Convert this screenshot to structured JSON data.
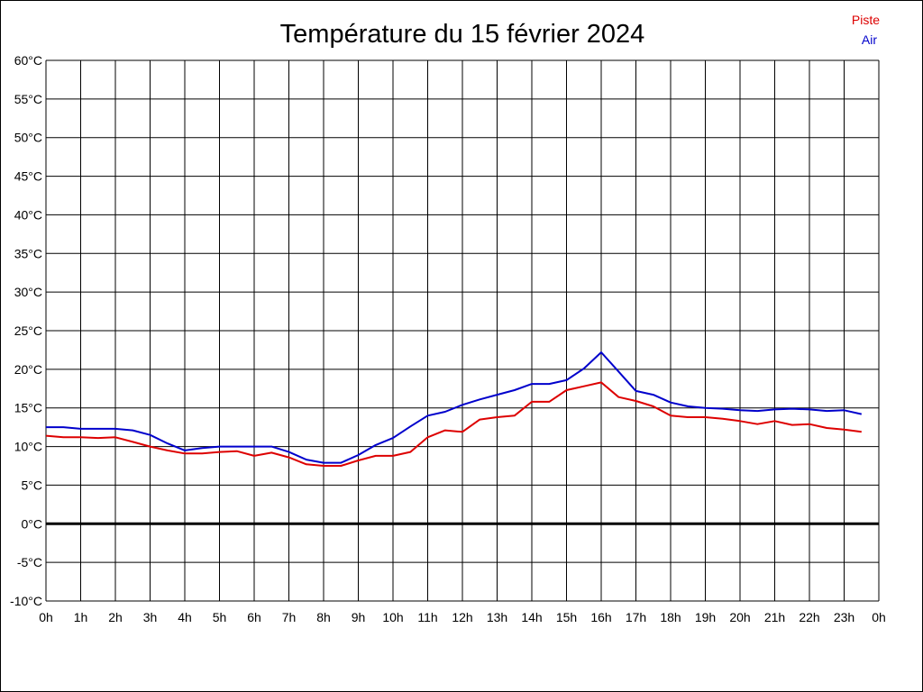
{
  "chart_data": {
    "type": "line",
    "title": "Température du 15 février 2024",
    "y_unit": "°C",
    "ylim": [
      -10,
      60
    ],
    "y_ticks": [
      60,
      55,
      50,
      45,
      40,
      35,
      30,
      25,
      20,
      15,
      10,
      5,
      0,
      -5,
      -10
    ],
    "y_tick_labels": [
      "60°C",
      "55°C",
      "50°C",
      "45°C",
      "40°C",
      "35°C",
      "30°C",
      "25°C",
      "20°C",
      "15°C",
      "10°C",
      "5°C",
      "0°C",
      "-5°C",
      "-10°C"
    ],
    "xlim": [
      0,
      24
    ],
    "x_ticks": [
      0,
      1,
      2,
      3,
      4,
      5,
      6,
      7,
      8,
      9,
      10,
      11,
      12,
      13,
      14,
      15,
      16,
      17,
      18,
      19,
      20,
      21,
      22,
      23,
      24
    ],
    "x_tick_labels": [
      "0h",
      "1h",
      "2h",
      "3h",
      "4h",
      "5h",
      "6h",
      "7h",
      "8h",
      "9h",
      "10h",
      "11h",
      "12h",
      "13h",
      "14h",
      "15h",
      "16h",
      "17h",
      "18h",
      "19h",
      "20h",
      "21h",
      "22h",
      "23h",
      "0h"
    ],
    "grid": true,
    "zero_line": true,
    "legend_position": "top-right",
    "x": [
      0,
      0.5,
      1,
      1.5,
      2,
      2.5,
      3,
      3.5,
      4,
      4.5,
      5,
      5.5,
      6,
      6.5,
      7,
      7.5,
      8,
      8.5,
      9,
      9.5,
      10,
      10.5,
      11,
      11.5,
      12,
      12.5,
      13,
      13.5,
      14,
      14.5,
      15,
      15.5,
      16,
      16.5,
      17,
      17.5,
      18,
      18.5,
      19,
      19.5,
      20,
      20.5,
      21,
      21.5,
      22,
      22.5,
      23,
      23.5
    ],
    "series": [
      {
        "name": "Piste",
        "color": "#dd0000",
        "values": [
          11.4,
          11.2,
          11.2,
          11.1,
          11.2,
          10.6,
          10.0,
          9.5,
          9.1,
          9.1,
          9.3,
          9.4,
          8.8,
          9.2,
          8.6,
          7.7,
          7.5,
          7.5,
          8.2,
          8.8,
          8.8,
          9.3,
          11.2,
          12.1,
          11.9,
          13.5,
          13.8,
          14.0,
          15.8,
          15.8,
          17.3,
          17.8,
          18.3,
          16.4,
          15.9,
          15.2,
          14.0,
          13.8,
          13.8,
          13.6,
          13.3,
          12.9,
          13.3,
          12.8,
          12.9,
          12.4,
          12.2,
          11.9
        ]
      },
      {
        "name": "Air",
        "color": "#0000cc",
        "values": [
          12.5,
          12.5,
          12.3,
          12.3,
          12.3,
          12.1,
          11.5,
          10.4,
          9.5,
          9.8,
          10.0,
          10.0,
          10.0,
          10.0,
          9.3,
          8.3,
          7.9,
          7.9,
          8.9,
          10.2,
          11.1,
          12.6,
          14.0,
          14.5,
          15.4,
          16.1,
          16.7,
          17.3,
          18.1,
          18.1,
          18.6,
          20.1,
          22.2,
          19.7,
          17.2,
          16.7,
          15.7,
          15.2,
          15.0,
          14.9,
          14.7,
          14.6,
          14.8,
          14.9,
          14.8,
          14.6,
          14.7,
          14.2
        ]
      }
    ]
  }
}
